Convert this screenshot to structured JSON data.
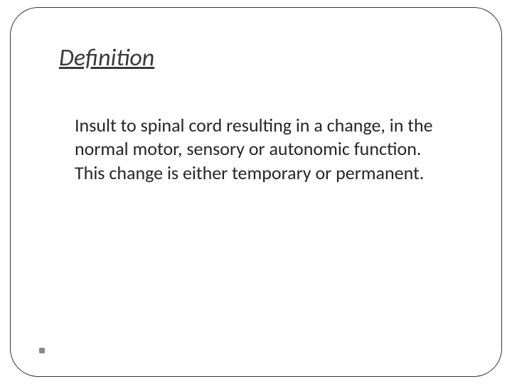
{
  "slide": {
    "heading": "Definition",
    "body": "Insult to spinal cord resulting in a change, in the normal motor, sensory or autonomic function. This change is either temporary or permanent.",
    "heading_color": "#3a3a3a",
    "body_color": "#262626",
    "border_color": "#333333",
    "background_color": "#ffffff",
    "heading_fontsize": 34,
    "body_fontsize": 26,
    "border_radius": 40,
    "bullet_color": "#888888"
  }
}
